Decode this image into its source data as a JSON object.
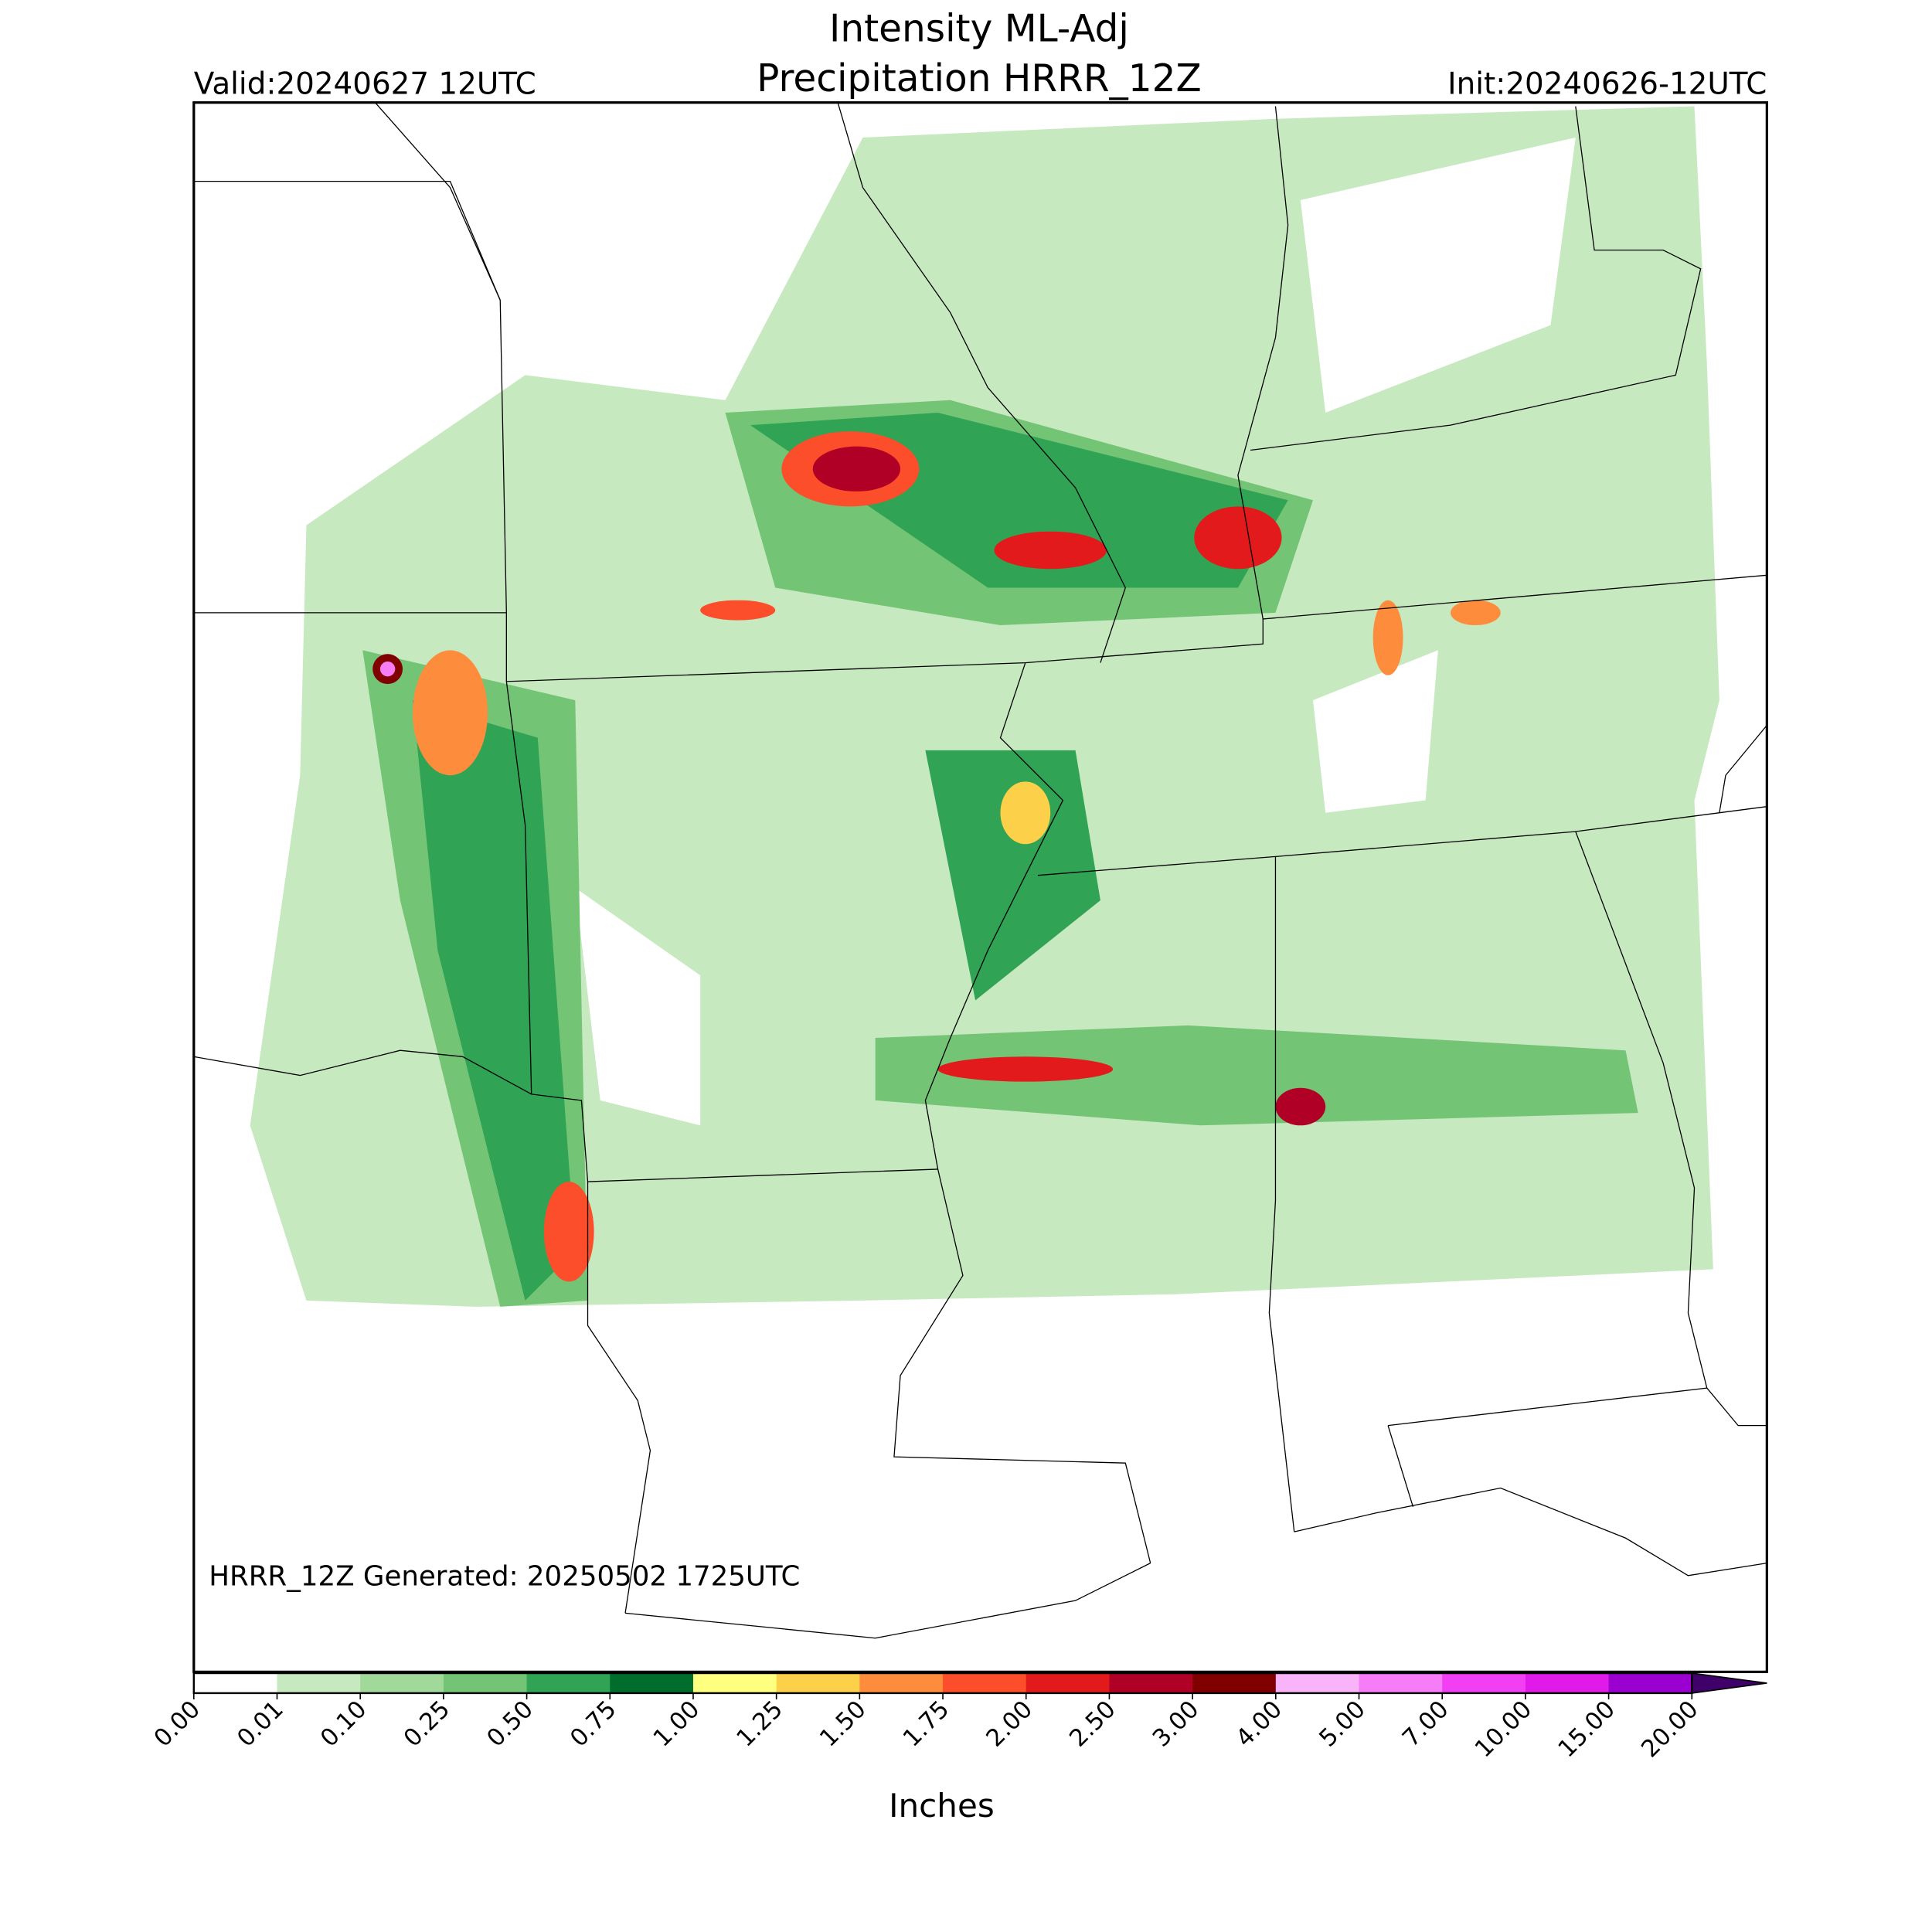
{
  "header": {
    "title_line1": "Intensity ML-Adj",
    "title_line2": "Precipitation HRRR_12Z",
    "valid": "Valid:20240627 12UTC",
    "init": "Init:20240626-12UTC"
  },
  "map": {
    "note": "HRRR_12Z Generated: 20250502 1725UTC"
  },
  "colorbar": {
    "label": "Inches",
    "labels": [
      "0.00",
      "0.01",
      "0.10",
      "0.25",
      "0.50",
      "0.75",
      "1.00",
      "1.25",
      "1.50",
      "1.75",
      "2.00",
      "2.50",
      "3.00",
      "4.00",
      "5.00",
      "7.00",
      "10.00",
      "15.00",
      "20.00"
    ],
    "colors": [
      "#ffffff",
      "#c7e9c0",
      "#a1d99b",
      "#74c476",
      "#31a354",
      "#006d2c",
      "#ffff80",
      "#fdd049",
      "#fd8d3c",
      "#fc4e2a",
      "#e31a1c",
      "#b10026",
      "#800000",
      "#f9b4f9",
      "#f77cf7",
      "#f33ff3",
      "#e01ae8",
      "#9a00d0"
    ],
    "extend_color": "#40006a"
  }
}
